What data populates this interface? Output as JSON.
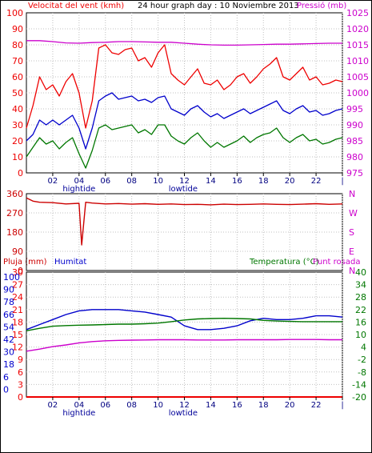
{
  "header": {
    "left_title": "Velocitat del vent (kmh)",
    "center_title": "24 hour graph day : 10 Noviembre 2013",
    "right_title": "Pressió (mb)"
  },
  "colors": {
    "red": "#ee0000",
    "blue": "#0000cc",
    "green": "#007700",
    "magenta": "#cc00cc",
    "darkred": "#cc0000",
    "tide": "#000099",
    "frame": "#000000",
    "grid": "#c0c0c0"
  },
  "axis_time": {
    "ticks": [
      "02",
      "04",
      "06",
      "08",
      "10",
      "12",
      "14",
      "16",
      "18",
      "20",
      "22",
      "|"
    ],
    "tide_labels": [
      {
        "text": "hightide",
        "hour": 4.0
      },
      {
        "text": "lowtide",
        "hour": 11.9
      }
    ]
  },
  "panel_labels": {
    "top_left_ticks": [
      "100",
      "90",
      "80",
      "70",
      "60",
      "50",
      "40",
      "30",
      "20",
      "10",
      "0"
    ],
    "top_right_ticks": [
      "1025",
      "1020",
      "1015",
      "1010",
      "1005",
      "1000",
      "995",
      "990",
      "985",
      "980",
      "975"
    ],
    "dir_left_ticks": [
      "360",
      "270",
      "180",
      "90",
      "0"
    ],
    "dir_right_letters": [
      "N",
      "W",
      "S",
      "E",
      "N"
    ],
    "bottom_header_left": "Pluja (mm)",
    "bottom_header_mid": "Humitat",
    "bottom_header_right1": "Temperatura (°C)",
    "bottom_header_right2": "Punt rosada",
    "rain_ticks": [
      "30",
      "27",
      "24",
      "21",
      "18",
      "15",
      "12",
      "9",
      "6",
      "3",
      "0"
    ],
    "hum_ticks": [
      "100",
      "90",
      "78",
      "66",
      "54",
      "42",
      "30",
      "18",
      "6",
      "0"
    ],
    "temp_ticks": [
      "40",
      "34",
      "28",
      "22",
      "16",
      "10",
      "4",
      "-2",
      "-8",
      "-14",
      "-20"
    ]
  },
  "chart_data": [
    {
      "type": "line",
      "title": "24 hour graph day : 10 Noviembre 2013",
      "x_unit": "hour of day",
      "xlim": [
        0,
        24
      ],
      "left_axis": {
        "label": "Velocitat del vent (kmh)",
        "ylim": [
          0,
          100
        ]
      },
      "right_axis": {
        "label": "Pressió (mb)",
        "ylim": [
          975,
          1025
        ]
      },
      "series": [
        {
          "name": "gust",
          "axis": "left",
          "color_key": "red",
          "x": [
            0,
            0.5,
            1,
            1.5,
            2,
            2.5,
            3,
            3.5,
            4,
            4.5,
            5,
            5.5,
            6,
            6.5,
            7,
            7.5,
            8,
            8.5,
            9,
            9.5,
            10,
            10.5,
            11,
            11.5,
            12,
            12.5,
            13,
            13.5,
            14,
            14.5,
            15,
            15.5,
            16,
            16.5,
            17,
            17.5,
            18,
            18.5,
            19,
            19.5,
            20,
            20.5,
            21,
            21.5,
            22,
            22.5,
            23,
            23.5,
            24
          ],
          "values": [
            28,
            42,
            60,
            52,
            55,
            48,
            57,
            62,
            50,
            28,
            45,
            78,
            80,
            75,
            74,
            77,
            78,
            70,
            72,
            66,
            75,
            80,
            62,
            58,
            55,
            60,
            65,
            56,
            55,
            58,
            52,
            55,
            60,
            62,
            56,
            60,
            65,
            68,
            72,
            60,
            58,
            62,
            66,
            58,
            60,
            55,
            56,
            58,
            57
          ]
        },
        {
          "name": "average",
          "axis": "left",
          "color_key": "blue",
          "x": [
            0,
            0.5,
            1,
            1.5,
            2,
            2.5,
            3,
            3.5,
            4,
            4.5,
            5,
            5.5,
            6,
            6.5,
            7,
            7.5,
            8,
            8.5,
            9,
            9.5,
            10,
            10.5,
            11,
            11.5,
            12,
            12.5,
            13,
            13.5,
            14,
            14.5,
            15,
            15.5,
            16,
            16.5,
            17,
            17.5,
            18,
            18.5,
            19,
            19.5,
            20,
            20.5,
            21,
            21.5,
            22,
            22.5,
            23,
            23.5,
            24
          ],
          "values": [
            20,
            24,
            33,
            30,
            33,
            30,
            33,
            36,
            28,
            15,
            28,
            45,
            48,
            50,
            46,
            47,
            48,
            45,
            46,
            44,
            47,
            48,
            40,
            38,
            36,
            40,
            42,
            38,
            35,
            37,
            34,
            36,
            38,
            40,
            37,
            39,
            41,
            43,
            45,
            39,
            37,
            40,
            42,
            38,
            39,
            36,
            37,
            39,
            40
          ]
        },
        {
          "name": "minimum",
          "axis": "left",
          "color_key": "green",
          "x": [
            0,
            0.5,
            1,
            1.5,
            2,
            2.5,
            3,
            3.5,
            4,
            4.5,
            5,
            5.5,
            6,
            6.5,
            7,
            7.5,
            8,
            8.5,
            9,
            9.5,
            10,
            10.5,
            11,
            11.5,
            12,
            12.5,
            13,
            13.5,
            14,
            14.5,
            15,
            15.5,
            16,
            16.5,
            17,
            17.5,
            18,
            18.5,
            19,
            19.5,
            20,
            20.5,
            21,
            21.5,
            22,
            22.5,
            23,
            23.5,
            24
          ],
          "values": [
            10,
            16,
            22,
            18,
            20,
            15,
            19,
            22,
            12,
            3,
            14,
            28,
            30,
            27,
            28,
            29,
            30,
            25,
            27,
            24,
            30,
            30,
            23,
            20,
            18,
            22,
            25,
            20,
            16,
            19,
            16,
            18,
            20,
            23,
            19,
            22,
            24,
            25,
            28,
            22,
            19,
            22,
            24,
            20,
            21,
            18,
            19,
            21,
            22
          ]
        },
        {
          "name": "pressure",
          "axis": "right",
          "color_key": "magenta",
          "x": [
            0,
            1,
            2,
            3,
            4,
            5,
            6,
            7,
            8,
            9,
            10,
            11,
            12,
            13,
            14,
            15,
            16,
            17,
            18,
            19,
            20,
            21,
            22,
            23,
            24
          ],
          "values": [
            1016.3,
            1016.3,
            1016.0,
            1015.6,
            1015.5,
            1015.7,
            1015.8,
            1016.0,
            1016.0,
            1015.9,
            1015.8,
            1015.8,
            1015.5,
            1015.2,
            1015.0,
            1014.9,
            1014.9,
            1015.0,
            1015.1,
            1015.2,
            1015.2,
            1015.3,
            1015.4,
            1015.5,
            1015.5
          ]
        }
      ]
    },
    {
      "type": "line",
      "x_unit": "hour of day",
      "xlim": [
        0,
        24
      ],
      "ylim": [
        0,
        360
      ],
      "series": [
        {
          "name": "wind direction",
          "color_key": "darkred",
          "x": [
            0,
            0.5,
            1,
            2,
            3,
            4,
            4.2,
            4.5,
            5,
            6,
            7,
            8,
            9,
            10,
            11,
            12,
            13,
            14,
            15,
            16,
            17,
            18,
            19,
            20,
            21,
            22,
            23,
            24
          ],
          "values": [
            340,
            325,
            320,
            318,
            312,
            315,
            120,
            320,
            316,
            312,
            314,
            311,
            313,
            310,
            312,
            309,
            310,
            308,
            311,
            309,
            310,
            312,
            310,
            309,
            311,
            313,
            310,
            312
          ]
        }
      ]
    },
    {
      "type": "line",
      "x_unit": "hour of day",
      "xlim": [
        0,
        24
      ],
      "axes": [
        {
          "label": "Pluja (mm)",
          "ylim": [
            0,
            30
          ]
        },
        {
          "label": "Humitat",
          "ylim": [
            0,
            100
          ]
        },
        {
          "label": "Temperatura (°C)",
          "ylim": [
            -20,
            40
          ]
        }
      ],
      "series": [
        {
          "name": "rain",
          "axis": "Pluja (mm)",
          "color_key": "red",
          "x": [
            0,
            24
          ],
          "values": [
            0,
            0
          ]
        },
        {
          "name": "humidity",
          "axis": "Humitat",
          "color_key": "blue",
          "x": [
            0,
            1,
            2,
            3,
            4,
            5,
            6,
            7,
            8,
            9,
            10,
            11,
            12,
            13,
            14,
            15,
            16,
            17,
            18,
            19,
            20,
            21,
            22,
            23,
            24
          ],
          "values": [
            54,
            58,
            62,
            66,
            69,
            70,
            70,
            70,
            69,
            68,
            66,
            64,
            57,
            54,
            54,
            55,
            57,
            61,
            63,
            62,
            62,
            63,
            65,
            65,
            64
          ]
        },
        {
          "name": "temperature",
          "axis": "Temperatura (°C)",
          "color_key": "green",
          "x": [
            0,
            1,
            2,
            3,
            4,
            5,
            6,
            7,
            8,
            9,
            10,
            11,
            12,
            13,
            14,
            15,
            16,
            17,
            18,
            19,
            20,
            21,
            22,
            23,
            24
          ],
          "values": [
            11.8,
            13.0,
            14.0,
            14.3,
            14.5,
            14.6,
            14.8,
            15.0,
            15.0,
            15.2,
            15.5,
            16.2,
            17.0,
            17.5,
            17.7,
            17.8,
            17.7,
            17.5,
            16.8,
            16.5,
            16.3,
            16.2,
            16.2,
            16.2,
            16.2
          ]
        },
        {
          "name": "dew point",
          "axis": "Temperatura (°C)",
          "color_key": "magenta",
          "x": [
            0,
            1,
            2,
            3,
            4,
            5,
            6,
            7,
            8,
            9,
            10,
            11,
            12,
            13,
            14,
            15,
            16,
            17,
            18,
            19,
            20,
            21,
            22,
            23,
            24
          ],
          "values": [
            2.0,
            3.0,
            4.2,
            5.0,
            6.0,
            6.6,
            7.0,
            7.2,
            7.3,
            7.4,
            7.5,
            7.5,
            7.5,
            7.4,
            7.4,
            7.4,
            7.5,
            7.5,
            7.5,
            7.5,
            7.6,
            7.6,
            7.6,
            7.5,
            7.5
          ]
        }
      ]
    }
  ]
}
